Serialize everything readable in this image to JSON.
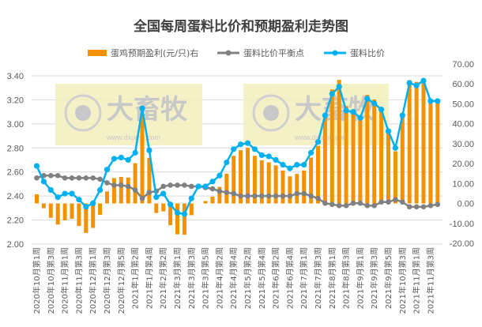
{
  "chart_data": {
    "type": "bar+line",
    "title": "全国每周蛋料比价和预期盈利走势图",
    "watermark": "大畜牧 www.dxumu.com",
    "legend_position": "top",
    "grid": true,
    "categories": [
      "2020年10月第1周",
      "2020年10月第2周",
      "2020年10月第3周",
      "2020年10月第4周",
      "2020年11月第1周",
      "2020年11月第2周",
      "2020年11月第3周",
      "2020年11月第4周",
      "2020年12月第1周",
      "2020年12月第2周",
      "2020年12月第3周",
      "2020年12月第4周",
      "2020年12月第5周",
      "2021年1月第1周",
      "2021年1月第2周",
      "2021年1月第3周",
      "2021年1月第4周",
      "2021年2月第1周",
      "2021年2月第2周",
      "2021年2月第3周",
      "2021年3月第1周",
      "2021年3月第2周",
      "2021年3月第3周",
      "2021年3月第4周",
      "2021年3月第5周",
      "2021年4月第1周",
      "2021年4月第2周",
      "2021年4月第3周",
      "2021年4月第4周",
      "2021年5月第1周",
      "2021年5月第2周",
      "2021年5月第3周",
      "2021年5月第4周",
      "2021年6月第1周",
      "2021年6月第2周",
      "2021年6月第3周",
      "2021年6月第4周",
      "2021年6月第5周",
      "2021年7月第1周",
      "2021年7月第2周",
      "2021年7月第3周",
      "2021年7月第4周",
      "2021年8月第1周",
      "2021年8月第2周",
      "2021年8月第3周",
      "2021年8月第4周",
      "2021年9月第1周",
      "2021年9月第2周",
      "2021年9月第3周",
      "2021年9月第4周",
      "2021年9月第5周",
      "2021年10月第2周",
      "2021年10月第3周",
      "2021年10月第4周",
      "2021年11月第1周",
      "2021年11月第2周",
      "2021年11月第3周",
      "2021年11月第4周"
    ],
    "left_axis": {
      "ylim": [
        2.0,
        3.4
      ],
      "ticks": [
        "2.00",
        "2.20",
        "2.40",
        "2.60",
        "2.80",
        "3.00",
        "3.20",
        "3.40"
      ]
    },
    "right_axis": {
      "ylim": [
        -20,
        70
      ],
      "ticks": [
        "-20.00",
        "-10.00",
        "0.00",
        "10.00",
        "20.00",
        "30.00",
        "40.00",
        "50.00",
        "60.00",
        "70.00"
      ]
    },
    "series": [
      {
        "name": "蛋鸡预期盈利(元/只)右",
        "type": "bar",
        "axis": "right",
        "color": "#F39200",
        "values": [
          4.6,
          -2.4,
          -7.2,
          -10.6,
          -8.5,
          -7.7,
          -11.3,
          -14.8,
          -12.3,
          -5.7,
          6.0,
          12.7,
          13.3,
          13.0,
          20.2,
          44.7,
          22.9,
          -4.8,
          -4.0,
          -10.9,
          -15.5,
          -15.7,
          -5.9,
          0.0,
          1.2,
          3.4,
          8.3,
          14.9,
          23.9,
          26.7,
          27.9,
          23.9,
          21.6,
          20.6,
          19.1,
          16.5,
          13.6,
          14.8,
          16.5,
          23.0,
          28.9,
          44.3,
          57.2,
          62.0,
          48.9,
          47.2,
          42.3,
          54.5,
          52.2,
          48.3,
          36.1,
          26.2,
          45.4,
          61.9,
          61.0,
          62.6,
          51.3,
          51.3
        ]
      },
      {
        "name": "蛋料比价平衡点",
        "type": "line",
        "axis": "left",
        "color": "#808080",
        "values": [
          2.55,
          2.57,
          2.57,
          2.57,
          2.55,
          2.55,
          2.55,
          2.55,
          2.55,
          2.54,
          2.51,
          2.49,
          2.49,
          2.48,
          2.45,
          2.38,
          2.43,
          2.44,
          2.48,
          2.49,
          2.49,
          2.49,
          2.48,
          2.48,
          2.47,
          2.46,
          2.44,
          2.43,
          2.42,
          2.4,
          2.4,
          2.4,
          2.4,
          2.4,
          2.4,
          2.4,
          2.4,
          2.42,
          2.42,
          2.4,
          2.38,
          2.34,
          2.33,
          2.32,
          2.32,
          2.34,
          2.34,
          2.32,
          2.32,
          2.35,
          2.35,
          2.37,
          2.35,
          2.31,
          2.31,
          2.31,
          2.32,
          2.33
        ]
      },
      {
        "name": "蛋料比价",
        "type": "line",
        "axis": "left",
        "color": "#00B0F0",
        "values": [
          2.65,
          2.52,
          2.45,
          2.39,
          2.42,
          2.42,
          2.37,
          2.31,
          2.34,
          2.45,
          2.62,
          2.71,
          2.72,
          2.7,
          2.76,
          3.13,
          2.78,
          2.39,
          2.42,
          2.33,
          2.26,
          2.25,
          2.38,
          2.48,
          2.48,
          2.52,
          2.57,
          2.68,
          2.79,
          2.83,
          2.84,
          2.79,
          2.74,
          2.73,
          2.7,
          2.66,
          2.63,
          2.66,
          2.66,
          2.76,
          2.85,
          3.07,
          3.25,
          3.31,
          3.11,
          3.1,
          3.05,
          3.21,
          3.17,
          3.12,
          2.94,
          2.8,
          3.07,
          3.34,
          3.32,
          3.36,
          3.19,
          3.19
        ]
      }
    ]
  }
}
